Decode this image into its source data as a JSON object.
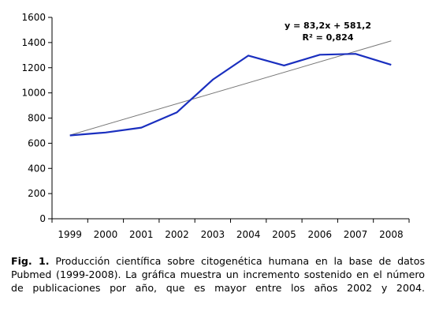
{
  "chart_data": {
    "type": "line",
    "x": [
      "1999",
      "2000",
      "2001",
      "2002",
      "2003",
      "2004",
      "2005",
      "2006",
      "2007",
      "2008"
    ],
    "series": [
      {
        "values": [
          662,
          685,
          724,
          846,
          1105,
          1296,
          1218,
          1303,
          1310,
          1223
        ],
        "color": "#1a2fbf"
      }
    ],
    "trendline": {
      "slope": 83.2,
      "intercept": 581.2,
      "color": "#777777"
    },
    "equation_line1": "y = 83,2x + 581,2",
    "equation_line2": "R² = 0,824",
    "ylim": [
      0,
      1600
    ],
    "yticks": [
      "0",
      "200",
      "400",
      "600",
      "800",
      "1000",
      "1200",
      "1400",
      "1600"
    ],
    "grid": false
  },
  "caption": {
    "label": "Fig. 1.",
    "text": " Producción científica sobre citogenética humana en la base de datos Pubmed (1999-2008). La gráfica muestra un incremento sostenido en el número de publicaciones por año, que es mayor entre los años 2002 y 2004."
  }
}
